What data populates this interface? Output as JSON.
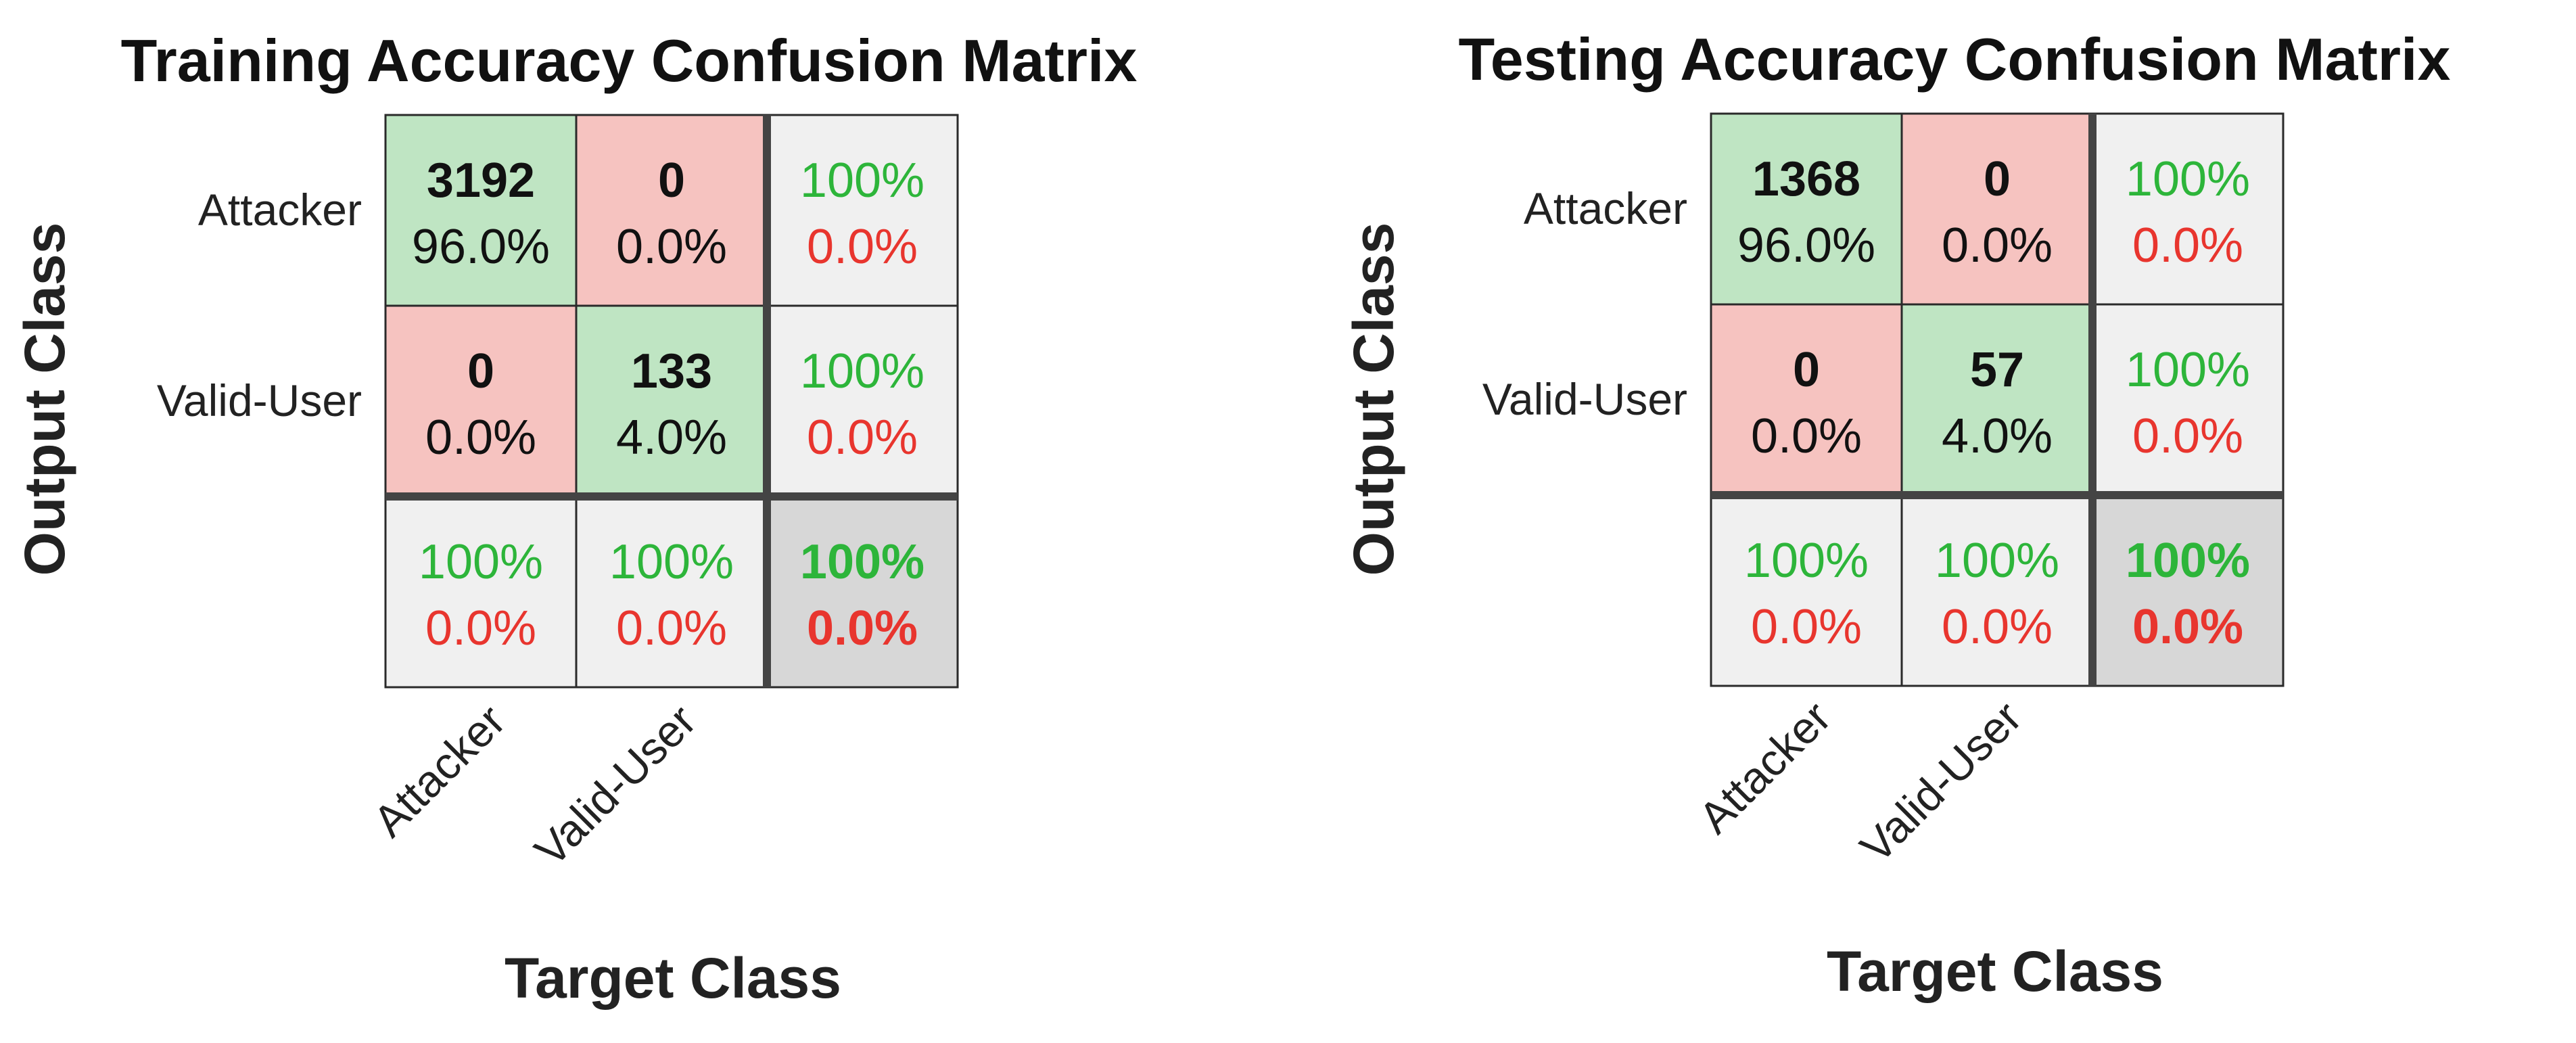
{
  "chart_data": [
    {
      "type": "heatmap",
      "title": "Training Accuracy Confusion Matrix",
      "xlabel": "Target Class",
      "ylabel": "Output Class",
      "classes": [
        "Attacker",
        "Valid-User"
      ],
      "matrix": [
        [
          {
            "count": "3192",
            "percent": "96.0%"
          },
          {
            "count": "0",
            "percent": "0.0%"
          }
        ],
        [
          {
            "count": "0",
            "percent": "0.0%"
          },
          {
            "count": "133",
            "percent": "4.0%"
          }
        ]
      ],
      "row_summary": [
        {
          "correct": "100%",
          "error": "0.0%"
        },
        {
          "correct": "100%",
          "error": "0.0%"
        }
      ],
      "col_summary": [
        {
          "correct": "100%",
          "error": "0.0%"
        },
        {
          "correct": "100%",
          "error": "0.0%"
        }
      ],
      "overall": {
        "correct": "100%",
        "error": "0.0%"
      }
    },
    {
      "type": "heatmap",
      "title": "Testing Accuracy Confusion Matrix",
      "xlabel": "Target Class",
      "ylabel": "Output Class",
      "classes": [
        "Attacker",
        "Valid-User"
      ],
      "matrix": [
        [
          {
            "count": "1368",
            "percent": "96.0%"
          },
          {
            "count": "0",
            "percent": "0.0%"
          }
        ],
        [
          {
            "count": "0",
            "percent": "0.0%"
          },
          {
            "count": "57",
            "percent": "4.0%"
          }
        ]
      ],
      "row_summary": [
        {
          "correct": "100%",
          "error": "0.0%"
        },
        {
          "correct": "100%",
          "error": "0.0%"
        }
      ],
      "col_summary": [
        {
          "correct": "100%",
          "error": "0.0%"
        },
        {
          "correct": "100%",
          "error": "0.0%"
        }
      ],
      "overall": {
        "correct": "100%",
        "error": "0.0%"
      }
    }
  ],
  "colors": {
    "correct_cell": "#bfe5c3",
    "error_cell": "#f6c3c0",
    "summary_cell": "#f0f0f0",
    "overall_cell": "#d7d7d7",
    "correct_text": "#2db53a",
    "error_text": "#e8352e"
  }
}
